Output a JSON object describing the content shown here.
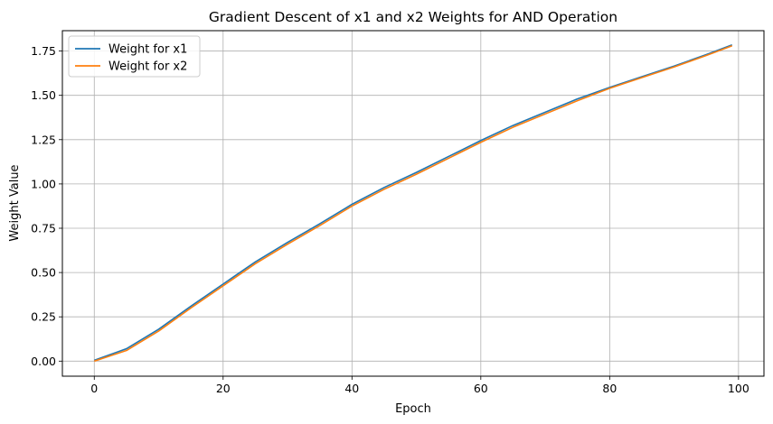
{
  "chart_data": {
    "type": "line",
    "title": "Gradient Descent of x1 and x2 Weights for AND Operation",
    "xlabel": "Epoch",
    "ylabel": "Weight Value",
    "xlim": [
      -4.95,
      103.95
    ],
    "ylim": [
      -0.085,
      1.865
    ],
    "xticks": [
      0,
      20,
      40,
      60,
      80,
      100
    ],
    "yticks": [
      0.0,
      0.25,
      0.5,
      0.75,
      1.0,
      1.25,
      1.5,
      1.75
    ],
    "xtick_labels": [
      "0",
      "20",
      "40",
      "60",
      "80",
      "100"
    ],
    "ytick_labels": [
      "0.00",
      "0.25",
      "0.50",
      "0.75",
      "1.00",
      "1.25",
      "1.50",
      "1.75"
    ],
    "grid": true,
    "legend_position": "top-left",
    "series": [
      {
        "name": "Weight for x1",
        "color": "#1f77b4",
        "x": [
          0,
          5,
          10,
          15,
          20,
          25,
          30,
          35,
          40,
          45,
          50,
          55,
          60,
          65,
          70,
          75,
          80,
          85,
          90,
          95,
          99
        ],
        "y": [
          0.005,
          0.07,
          0.18,
          0.31,
          0.435,
          0.56,
          0.67,
          0.775,
          0.885,
          0.98,
          1.065,
          1.155,
          1.245,
          1.33,
          1.405,
          1.48,
          1.545,
          1.605,
          1.665,
          1.73,
          1.785
        ]
      },
      {
        "name": "Weight for x2",
        "color": "#ff7f0e",
        "x": [
          0,
          5,
          10,
          15,
          20,
          25,
          30,
          35,
          40,
          45,
          50,
          55,
          60,
          65,
          70,
          75,
          80,
          85,
          90,
          95,
          99
        ],
        "y": [
          0.0,
          0.06,
          0.17,
          0.3,
          0.425,
          0.55,
          0.66,
          0.765,
          0.875,
          0.97,
          1.055,
          1.145,
          1.235,
          1.32,
          1.395,
          1.47,
          1.54,
          1.6,
          1.66,
          1.725,
          1.78
        ]
      }
    ]
  }
}
